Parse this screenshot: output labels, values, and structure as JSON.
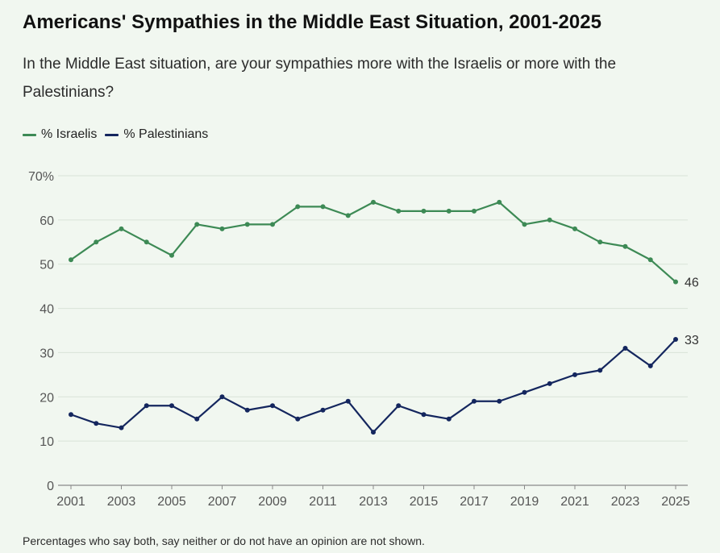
{
  "title": "Americans' Sympathies in the Middle East Situation, 2001-2025",
  "subtitle": "In the Middle East situation, are your sympathies more with the Israelis or more with the Palestinians?",
  "footnote": "Percentages who say both, say neither or do not have an opinion are not shown.",
  "colors": {
    "israelis": "#3d8a55",
    "palestinians": "#14265e",
    "grid": "#d9e3d8",
    "axis": "#8a8a8a",
    "tick_text": "#555555",
    "label_text": "#333333"
  },
  "chart_data": {
    "type": "line",
    "x": [
      2001,
      2002,
      2003,
      2004,
      2005,
      2006,
      2007,
      2008,
      2009,
      2010,
      2011,
      2012,
      2013,
      2014,
      2015,
      2016,
      2017,
      2018,
      2019,
      2020,
      2021,
      2022,
      2023,
      2024,
      2025
    ],
    "series": [
      {
        "name": "% Israelis",
        "color": "#3d8a55",
        "values": [
          51,
          55,
          58,
          55,
          52,
          59,
          58,
          59,
          59,
          63,
          63,
          61,
          64,
          62,
          62,
          62,
          62,
          64,
          59,
          60,
          58,
          55,
          54,
          51,
          46
        ],
        "end_label": "46"
      },
      {
        "name": "% Palestinians",
        "color": "#14265e",
        "values": [
          16,
          14,
          13,
          18,
          18,
          15,
          20,
          17,
          18,
          15,
          17,
          19,
          12,
          18,
          16,
          15,
          19,
          19,
          21,
          23,
          25,
          26,
          31,
          27,
          33
        ],
        "end_label": "33"
      }
    ],
    "xticks": [
      "2001",
      "2003",
      "2005",
      "2007",
      "2009",
      "2011",
      "2013",
      "2015",
      "2017",
      "2019",
      "2021",
      "2023",
      "2025"
    ],
    "yticks": [
      "0",
      "10",
      "20",
      "30",
      "40",
      "50",
      "60",
      "70%"
    ],
    "ylim": [
      0,
      70
    ],
    "xlim": [
      2001,
      2025
    ],
    "grid": true,
    "legend_position": "top-left"
  }
}
